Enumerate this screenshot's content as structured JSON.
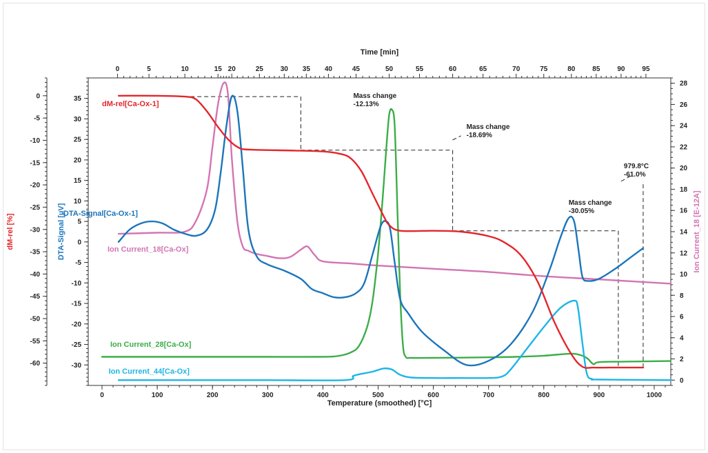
{
  "chart_data": {
    "type": "line",
    "title": "",
    "xlabel": "Temperature (smoothed) [°C]",
    "xlim": [
      0,
      1030
    ],
    "xticks": [
      0,
      100,
      200,
      300,
      400,
      500,
      600,
      700,
      800,
      900,
      1000
    ],
    "top_axis": {
      "label": "Time [min]",
      "ticks": [
        0,
        5,
        10,
        15,
        20,
        25,
        30,
        35,
        40,
        45,
        50,
        55,
        60,
        65,
        70,
        75,
        80,
        85,
        90,
        95
      ],
      "temp_at_tick": [
        28,
        85,
        150,
        210,
        235,
        285,
        330,
        370,
        410,
        460,
        520,
        575,
        635,
        690,
        750,
        800,
        850,
        895,
        940,
        985
      ]
    },
    "left_axis_1": {
      "label": "dM-rel [%]",
      "ylim": [
        -65,
        4
      ],
      "ticks": [
        0,
        -5,
        -10,
        -15,
        -20,
        -25,
        -30,
        -35,
        -40,
        -45,
        -50,
        -55,
        -60
      ]
    },
    "left_axis_2": {
      "label": "DTA-Signal [µV]",
      "ylim": [
        -35,
        40
      ],
      "ticks": [
        35,
        30,
        25,
        20,
        15,
        10,
        5,
        0,
        -5,
        -10,
        -15,
        -20,
        -25,
        -30
      ]
    },
    "right_axis": {
      "label": "Ion Current_18 [E-12A]",
      "ylim": [
        -0.5,
        28.5
      ],
      "ticks": [
        0,
        2,
        4,
        6,
        8,
        10,
        12,
        14,
        16,
        18,
        20,
        22,
        24,
        26,
        28
      ]
    },
    "series": [
      {
        "name": "dM-rel[Ca-Ox-1]",
        "color": "#e3262b",
        "axis": "left_axis_1",
        "x": [
          30,
          100,
          150,
          170,
          190,
          210,
          230,
          250,
          270,
          300,
          350,
          400,
          430,
          450,
          470,
          490,
          510,
          520,
          540,
          600,
          650,
          700,
          730,
          760,
          790,
          820,
          850,
          870,
          890,
          920,
          950,
          980
        ],
        "y": [
          0,
          0,
          -0.2,
          -0.8,
          -3.5,
          -7,
          -10,
          -11.8,
          -12.1,
          -12.2,
          -12.3,
          -12.5,
          -13,
          -14,
          -17,
          -22,
          -27,
          -29,
          -30.3,
          -30.3,
          -30.5,
          -31.5,
          -33,
          -36,
          -42,
          -51,
          -58,
          -60.8,
          -61,
          -61,
          -61,
          -61
        ]
      },
      {
        "name": "DTA-Signal[Ca-Ox-1]",
        "color": "#1b75bb",
        "axis": "left_axis_2",
        "x": [
          30,
          50,
          70,
          90,
          110,
          130,
          150,
          170,
          190,
          205,
          215,
          225,
          235,
          245,
          255,
          265,
          280,
          300,
          330,
          360,
          380,
          400,
          420,
          440,
          460,
          475,
          490,
          505,
          515,
          522,
          530,
          540,
          555,
          580,
          620,
          660,
          700,
          740,
          780,
          810,
          830,
          845,
          855,
          863,
          870,
          880,
          900,
          930,
          960,
          980
        ],
        "y": [
          0,
          3,
          4.5,
          5,
          4.5,
          3,
          2,
          1.5,
          3,
          8,
          17,
          28,
          35.5,
          32,
          18,
          3,
          -3.5,
          -5.5,
          -7,
          -9,
          -11.5,
          -12.5,
          -13.5,
          -13.5,
          -12.5,
          -10,
          -3,
          4,
          5,
          3,
          -5,
          -14,
          -17.5,
          -22,
          -26.5,
          -30,
          -29,
          -25,
          -17,
          -7,
          1,
          5.8,
          5,
          -2,
          -8.5,
          -9.5,
          -9,
          -6.5,
          -3.5,
          -1.5
        ]
      },
      {
        "name": "Ion Current_18[Ca-Ox]",
        "color": "#d374b3",
        "axis": "right_axis",
        "x": [
          30,
          100,
          150,
          170,
          190,
          200,
          210,
          220,
          228,
          235,
          245,
          255,
          265,
          280,
          300,
          320,
          340,
          360,
          372,
          385,
          400,
          450,
          500,
          600,
          700,
          800,
          900,
          1030
        ],
        "y": [
          13.8,
          13.9,
          14,
          15,
          18,
          22,
          26,
          28,
          27,
          21,
          15,
          12.6,
          12.2,
          11.9,
          11.7,
          11.5,
          11.6,
          12.3,
          12.6,
          11.8,
          11.2,
          11,
          10.8,
          10.5,
          10.2,
          9.8,
          9.5,
          9.1
        ]
      },
      {
        "name": "Ion Current_28[Ca-Ox]",
        "color": "#3cad48",
        "axis": "right_axis",
        "x": [
          0,
          100,
          200,
          300,
          400,
          430,
          450,
          465,
          480,
          490,
          500,
          508,
          515,
          520,
          525,
          530,
          535,
          540,
          545,
          550,
          560,
          600,
          700,
          750,
          800,
          850,
          870,
          880,
          890,
          900,
          950,
          1030
        ],
        "y": [
          2.2,
          2.2,
          2.2,
          2.2,
          2.2,
          2.3,
          2.6,
          3.2,
          5,
          7.5,
          12,
          17,
          22,
          25,
          25.5,
          24,
          16,
          8,
          3.3,
          2.2,
          2.1,
          2.1,
          2.15,
          2.2,
          2.3,
          2.5,
          2.3,
          2,
          1.5,
          1.7,
          1.75,
          1.8
        ]
      },
      {
        "name": "Ion Current_44[Ca-Ox]",
        "color": "#1eb5e6",
        "axis": "right_axis",
        "x": [
          30,
          100,
          200,
          300,
          440,
          455,
          470,
          490,
          510,
          525,
          540,
          560,
          600,
          650,
          700,
          725,
          740,
          770,
          800,
          830,
          855,
          862,
          870,
          878,
          888,
          900,
          1030
        ],
        "y": [
          0,
          0,
          0,
          0,
          0,
          0.4,
          0.6,
          0.8,
          1.1,
          1.0,
          0.5,
          0.25,
          0.2,
          0.2,
          0.2,
          0.35,
          1,
          3,
          5,
          6.8,
          7.5,
          6.8,
          3.5,
          0.6,
          0.1,
          0.05,
          0
        ]
      }
    ],
    "annotations": [
      {
        "lines": [
          "Mass change",
          "-12.13%"
        ],
        "color": "#222222"
      },
      {
        "lines": [
          "Mass change",
          "-18.69%"
        ],
        "color": "#222222"
      },
      {
        "lines": [
          "Mass change",
          "-30.05%"
        ],
        "color": "#222222"
      },
      {
        "lines": [
          "979.8°C",
          "-61.0%"
        ],
        "color": "#222222"
      }
    ],
    "series_labels": [
      {
        "text": "dM-rel[Ca-Ox-1]",
        "color": "#e3262b"
      },
      {
        "text": "DTA-Signal[Ca-Ox-1]",
        "color": "#1b75bb"
      },
      {
        "text": "Ion Current_18[Ca-Ox]",
        "color": "#d374b3"
      },
      {
        "text": "Ion Current_28[Ca-Ox]",
        "color": "#3cad48"
      },
      {
        "text": "Ion Current_44[Ca-Ox]",
        "color": "#1eb5e6"
      }
    ],
    "grid": false,
    "legend": "inline labels"
  }
}
